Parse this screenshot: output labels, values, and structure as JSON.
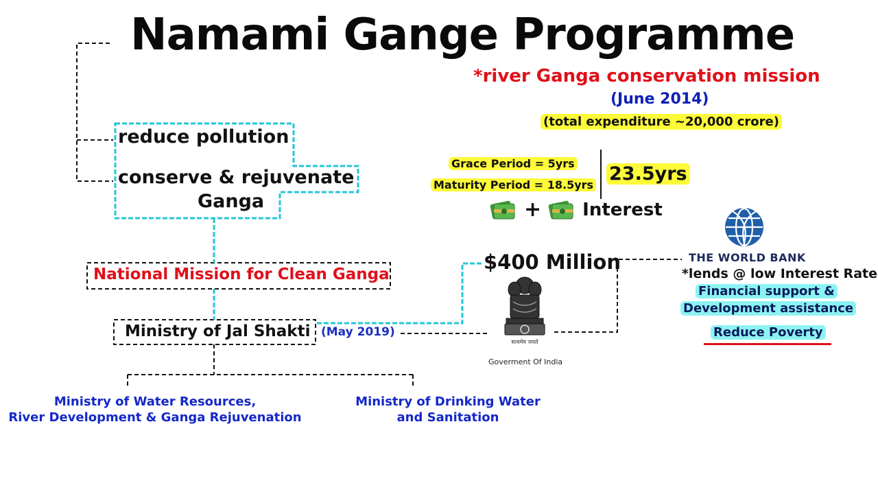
{
  "title": "Namami Gange Programme",
  "subtitle": "*river Ganga conservation mission",
  "launch_date": "(June 2014)",
  "expenditure": "(total expenditure ~20,000 crore)",
  "objectives": {
    "reduce": "reduce pollution",
    "conserve_line1": "conserve & rejuvenate",
    "conserve_line2": "Ganga"
  },
  "mission": "National Mission for Clean Ganga",
  "ministry": "Ministry of Jal Shakti",
  "ministry_date": "(May 2019)",
  "sub_ministries": [
    {
      "line1": "Ministry of Water Resources,",
      "line2": "River Development & Ganga Rejuvenation"
    },
    {
      "line1": "Ministry of Drinking Water",
      "line2": "and Sanitation"
    }
  ],
  "loan": {
    "grace": "Grace Period = 5yrs",
    "maturity": "Maturity Period = 18.5yrs",
    "total": "23.5yrs",
    "plus": "+",
    "interest": "Interest",
    "amount": "$400 Million"
  },
  "government": {
    "label": "Goverment Of India",
    "emblem_icon": "national-emblem-icon"
  },
  "world_bank": {
    "name": "THE WORLD BANK",
    "lends": "*lends @ low Interest Rates",
    "support_line1": "Financial support &",
    "support_line2": "Development assistance",
    "goal": "Reduce Poverty",
    "logo_icon": "globe-icon"
  },
  "colors": {
    "red": "#e0101a",
    "blue": "#1428c8",
    "yellow_highlight": "#fdfa3a",
    "cyan_highlight": "#8cf3f3",
    "cyan_line": "#23c7d6"
  }
}
